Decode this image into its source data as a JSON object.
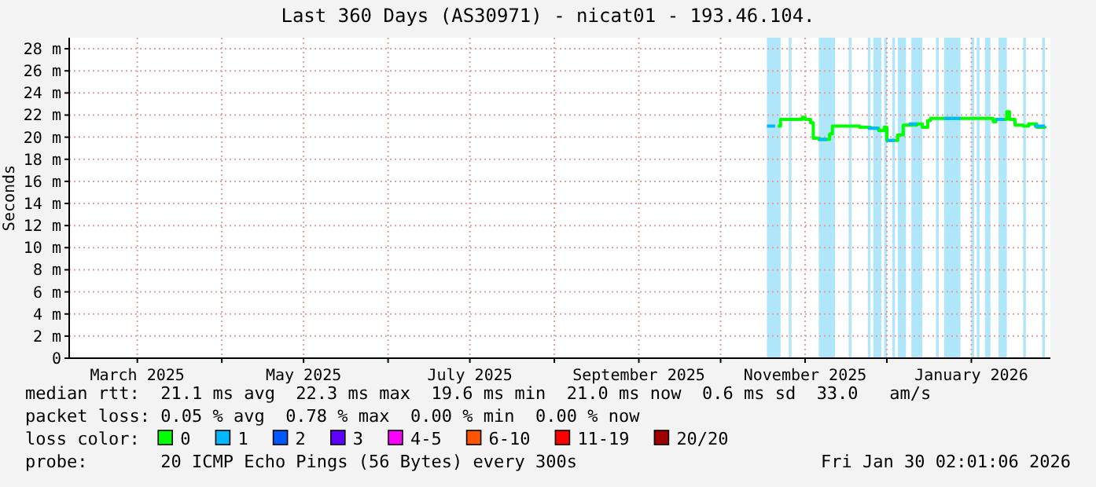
{
  "chart_data": {
    "type": "line",
    "title": "Last 360 Days (AS30971) - nicat01 - 193.46.104.",
    "ylabel": "Seconds",
    "xlim": [
      "2025-02-04",
      "2026-01-30"
    ],
    "xticks": [
      {
        "value": "2025-03-01",
        "label": "March 2025"
      },
      {
        "value": "2025-04-01",
        "label": null
      },
      {
        "value": "2025-05-01",
        "label": "May 2025"
      },
      {
        "value": "2025-06-01",
        "label": null
      },
      {
        "value": "2025-07-01",
        "label": "July 2025"
      },
      {
        "value": "2025-08-01",
        "label": null
      },
      {
        "value": "2025-09-01",
        "label": "September 2025"
      },
      {
        "value": "2025-10-01",
        "label": null
      },
      {
        "value": "2025-11-01",
        "label": "November 2025"
      },
      {
        "value": "2025-12-01",
        "label": null
      },
      {
        "value": "2026-01-01",
        "label": "January 2026"
      }
    ],
    "ylim": [
      0,
      29
    ],
    "yticks": [
      0,
      {
        "value": 2,
        "label": "2 m"
      },
      {
        "value": 4,
        "label": "4 m"
      },
      {
        "value": 6,
        "label": "6 m"
      },
      {
        "value": 8,
        "label": "8 m"
      },
      {
        "value": 10,
        "label": "10 m"
      },
      {
        "value": 12,
        "label": "12 m"
      },
      {
        "value": 14,
        "label": "14 m"
      },
      {
        "value": 16,
        "label": "16 m"
      },
      {
        "value": 18,
        "label": "18 m"
      },
      {
        "value": 20,
        "label": "20 m"
      },
      {
        "value": 22,
        "label": "22 m"
      },
      {
        "value": 24,
        "label": "24 m"
      },
      {
        "value": 26,
        "label": "26 m"
      },
      {
        "value": 28,
        "label": "28 m"
      }
    ],
    "grid": true,
    "legend": "bottom",
    "legend_title": "loss color:",
    "bands": [
      {
        "axis": "x",
        "from": "2025-10-18",
        "to": "2025-10-23",
        "color": "#b0e6fa"
      },
      {
        "axis": "x",
        "from": "2025-10-26",
        "to": "2025-10-27",
        "color": "#b0e6fa"
      },
      {
        "axis": "x",
        "from": "2025-11-06",
        "to": "2025-11-12",
        "color": "#b0e6fa"
      },
      {
        "axis": "x",
        "from": "2025-11-17",
        "to": "2025-11-18",
        "color": "#b0e6fa"
      },
      {
        "axis": "x",
        "from": "2025-11-24",
        "to": "2025-11-25",
        "color": "#b0e6fa"
      },
      {
        "axis": "x",
        "from": "2025-11-26",
        "to": "2025-11-29",
        "color": "#b0e6fa"
      },
      {
        "axis": "x",
        "from": "2025-11-30",
        "to": "2025-12-01",
        "color": "#b0e6fa"
      },
      {
        "axis": "x",
        "from": "2025-12-03",
        "to": "2025-12-04",
        "color": "#b0e6fa"
      },
      {
        "axis": "x",
        "from": "2025-12-05",
        "to": "2025-12-08",
        "color": "#b0e6fa"
      },
      {
        "axis": "x",
        "from": "2025-12-10",
        "to": "2025-12-14",
        "color": "#b0e6fa"
      },
      {
        "axis": "x",
        "from": "2025-12-19",
        "to": "2025-12-20",
        "color": "#b0e6fa"
      },
      {
        "axis": "x",
        "from": "2025-12-22",
        "to": "2025-12-28",
        "color": "#b0e6fa"
      },
      {
        "axis": "x",
        "from": "2026-01-01",
        "to": "2026-01-02",
        "color": "#b0e6fa"
      },
      {
        "axis": "x",
        "from": "2026-01-03",
        "to": "2026-01-04",
        "color": "#b0e6fa"
      },
      {
        "axis": "x",
        "from": "2026-01-06",
        "to": "2026-01-08",
        "color": "#b0e6fa"
      },
      {
        "axis": "x",
        "from": "2026-01-11",
        "to": "2026-01-14",
        "color": "#b0e6fa"
      },
      {
        "axis": "x",
        "from": "2026-01-20",
        "to": "2026-01-21",
        "color": "#b0e6fa"
      },
      {
        "axis": "x",
        "from": "2026-01-27",
        "to": "2026-01-28",
        "color": "#b0e6fa"
      }
    ],
    "series": [
      {
        "name": "0",
        "color": "#00ff00",
        "x": [
          "2025-10-22",
          "2025-10-23",
          "2025-10-30",
          "2025-10-31",
          "2025-11-01",
          "2025-11-03",
          "2025-11-04",
          "2025-11-06",
          "2025-11-09",
          "2025-11-10",
          "2025-11-11",
          "2025-11-21",
          "2025-11-25",
          "2025-11-28",
          "2025-11-30",
          "2025-12-01",
          "2025-12-04",
          "2025-12-05",
          "2025-12-07",
          "2025-12-12",
          "2025-12-14",
          "2025-12-16",
          "2025-12-17",
          "2026-01-08",
          "2026-01-09",
          "2026-01-10",
          "2026-01-13",
          "2026-01-14",
          "2026-01-15",
          "2026-01-17",
          "2026-01-20",
          "2026-01-22",
          "2026-01-25",
          "2026-01-28"
        ],
        "values": [
          21.0,
          21.6,
          21.6,
          21.8,
          21.6,
          21.3,
          19.9,
          19.8,
          19.8,
          20.3,
          21.0,
          20.9,
          20.8,
          20.6,
          20.9,
          19.7,
          19.7,
          20.2,
          21.1,
          21.2,
          20.9,
          21.5,
          21.7,
          21.7,
          21.4,
          21.6,
          21.6,
          22.3,
          21.6,
          21.1,
          21.0,
          21.2,
          20.9,
          21.0
        ]
      },
      {
        "name": "1",
        "color": "#00b8ff",
        "x": [
          "2025-10-18",
          "2025-10-21",
          "2025-10-22",
          "2025-11-06",
          "2025-11-09",
          "2025-11-10",
          "2025-11-24",
          "2025-11-28",
          "2025-11-29",
          "2025-12-01",
          "2025-12-04",
          "2025-12-05",
          "2025-12-09",
          "2025-12-12",
          "2025-12-13",
          "2025-12-22",
          "2025-12-28",
          "2025-12-29",
          "2026-01-10",
          "2026-01-13",
          "2026-01-14",
          "2026-01-24",
          "2026-01-28"
        ],
        "values": [
          21.0,
          21.0,
          null,
          19.8,
          19.8,
          null,
          20.8,
          20.8,
          null,
          19.7,
          19.7,
          null,
          21.2,
          21.2,
          null,
          21.7,
          21.7,
          null,
          21.6,
          21.6,
          null,
          21.0,
          21.0
        ]
      },
      {
        "name": "2",
        "color": "#0059ff"
      },
      {
        "name": "3",
        "color": "#5e00ff"
      },
      {
        "name": "4-5",
        "color": "#ff00ff"
      },
      {
        "name": "6-10",
        "color": "#ff5500"
      },
      {
        "name": "11-19",
        "color": "#ff0000"
      },
      {
        "name": "20/20",
        "color": "#a10000"
      }
    ],
    "annotations": [
      "median rtt:  21.1 ms avg  22.3 ms max  19.6 ms min  21.0 ms now  0.6 ms sd  33.0   am/s",
      "packet loss: 0.05 % avg  0.78 % max  0.00 % min  0.00 % now",
      "probe:       20 ICMP Echo Pings (56 Bytes) every 300s",
      "Fri Jan 30 02:01:06 2026"
    ]
  }
}
